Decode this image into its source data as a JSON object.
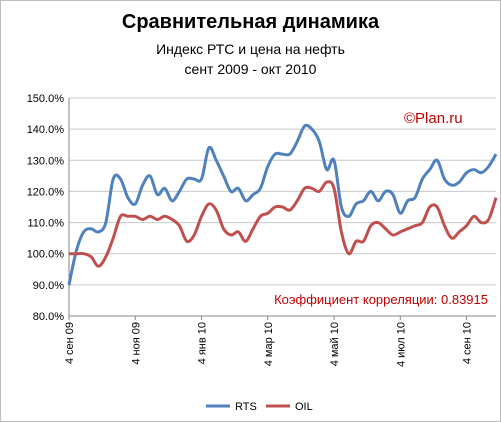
{
  "chart_data": {
    "type": "line",
    "title": "Сравнительная динамика",
    "subtitle": "Индекс РТС и цена на нефть",
    "period": "сент 2009 - окт 2010",
    "watermark": "©Plan.ru",
    "annotation": "Коэффициент корреляции: 0.83915",
    "ylim": [
      0.8,
      1.5
    ],
    "y_ticks": [
      "80.0%",
      "90.0%",
      "100.0%",
      "110.0%",
      "120.0%",
      "130.0%",
      "140.0%",
      "150.0%"
    ],
    "x_ticks": [
      "4 сен 09",
      "4 ноя 09",
      "4 янв 10",
      "4 мар 10",
      "4 май 10",
      "4 июл 10",
      "4 сен 10"
    ],
    "grid": true,
    "legend_position": "bottom",
    "series": [
      {
        "name": "RTS",
        "color": "#4f81bd",
        "values": [
          0.9,
          1.01,
          1.07,
          1.08,
          1.07,
          1.1,
          1.24,
          1.24,
          1.18,
          1.16,
          1.22,
          1.25,
          1.19,
          1.21,
          1.17,
          1.2,
          1.24,
          1.24,
          1.24,
          1.34,
          1.3,
          1.25,
          1.2,
          1.21,
          1.17,
          1.19,
          1.21,
          1.28,
          1.32,
          1.32,
          1.32,
          1.36,
          1.41,
          1.4,
          1.36,
          1.27,
          1.3,
          1.15,
          1.12,
          1.16,
          1.17,
          1.2,
          1.17,
          1.2,
          1.19,
          1.13,
          1.17,
          1.18,
          1.24,
          1.27,
          1.3,
          1.24,
          1.22,
          1.23,
          1.26,
          1.27,
          1.26,
          1.28,
          1.32
        ]
      },
      {
        "name": "OIL",
        "color": "#c0504d",
        "values": [
          1.0,
          1.0,
          1.0,
          0.99,
          0.96,
          0.99,
          1.05,
          1.12,
          1.12,
          1.12,
          1.11,
          1.12,
          1.11,
          1.12,
          1.11,
          1.09,
          1.04,
          1.06,
          1.12,
          1.16,
          1.14,
          1.08,
          1.06,
          1.07,
          1.04,
          1.08,
          1.12,
          1.13,
          1.15,
          1.15,
          1.14,
          1.17,
          1.21,
          1.21,
          1.2,
          1.23,
          1.21,
          1.07,
          1.0,
          1.04,
          1.04,
          1.09,
          1.1,
          1.08,
          1.06,
          1.07,
          1.08,
          1.09,
          1.1,
          1.15,
          1.15,
          1.09,
          1.05,
          1.07,
          1.09,
          1.12,
          1.1,
          1.11,
          1.18
        ]
      }
    ]
  }
}
